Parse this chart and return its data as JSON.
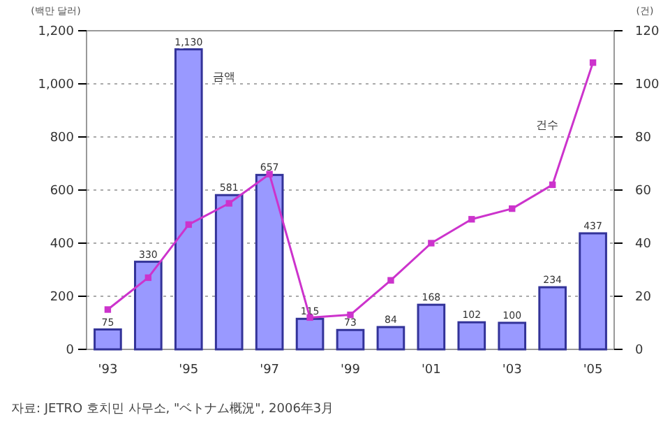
{
  "chart_data": {
    "type": "bar",
    "ylabel": "(백만 달러)",
    "y2label": "(건)",
    "categories": [
      "'93",
      null,
      "'95",
      null,
      "'97",
      null,
      "'99",
      null,
      "'01",
      null,
      "'03",
      null,
      "'05"
    ],
    "series": [
      {
        "name": "금액",
        "color": "#9999ff",
        "values": [
          75,
          330,
          1130,
          581,
          657,
          115,
          73,
          84,
          168,
          102,
          100,
          234,
          437
        ],
        "value_labels": [
          "75",
          "330",
          "1,130",
          "581",
          "657",
          "115",
          "73",
          "84",
          "168",
          "102",
          "100",
          "234",
          "437"
        ]
      },
      {
        "name": "건수",
        "type": "line",
        "axis": "y2",
        "color": "#cc33cc",
        "values": [
          15,
          27,
          47,
          55,
          66,
          12,
          13,
          26,
          40,
          49,
          53,
          62,
          108
        ]
      }
    ],
    "ylim": [
      0,
      1200
    ],
    "yticks": [
      0,
      200,
      400,
      600,
      800,
      {
        "value": 1000,
        "label": "1,000"
      },
      {
        "value": 1200,
        "label": "1,200"
      }
    ],
    "y2lim": [
      0,
      120
    ],
    "y2ticks": [
      0,
      20,
      40,
      60,
      80,
      100,
      120
    ],
    "grid": "y",
    "marker": "square",
    "line_style": "solid",
    "annotations": [
      "자료: JETRO 호치민 사무소, \"ベトナム概況\", 2006年3月"
    ]
  }
}
